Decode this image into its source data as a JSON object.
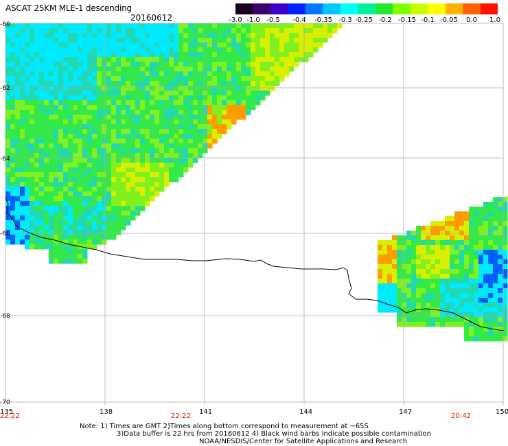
{
  "header": {
    "title": "ASCAT 25KM MLE-1 descending",
    "date": "20160612"
  },
  "colorbar": {
    "labels": [
      "-3.0",
      "-1.0",
      "-0.5",
      "-0.4",
      "-0.35",
      "-0.3",
      "-0.25",
      "-0.2",
      "-0.15",
      "-0.1",
      "-0.05",
      "0.0",
      "1.0"
    ],
    "colors": [
      "#180022",
      "#3a0070",
      "#3e00c8",
      "#0022ff",
      "#0078ff",
      "#00c8ff",
      "#00ffff",
      "#00f0a0",
      "#22e830",
      "#80ff00",
      "#c8ff00",
      "#ffff00",
      "#ffb000",
      "#ff6000",
      "#ff1000"
    ]
  },
  "map": {
    "lon_labels": [
      "135",
      "138",
      "141",
      "144",
      "147",
      "150"
    ],
    "lat_labels": [
      "-60",
      "-62",
      "-64",
      "-66",
      "-68",
      "-70"
    ],
    "time_labels": [
      "22:22",
      "22:22",
      "20:42"
    ],
    "time_color": "#cc2200",
    "grid_color": "#aaaaaa",
    "coast_color": "#000000"
  },
  "notes": {
    "line1": "Note: 1) Times are GMT 2)Times along bottom correspond to measurement at ~65S",
    "line2": "3)Data buffer is 22 hrs from 20160612 4) Black wind barbs indicate possible contamination",
    "line3": "NOAA/NESDIS/Center for Satellite Applications and Research"
  }
}
